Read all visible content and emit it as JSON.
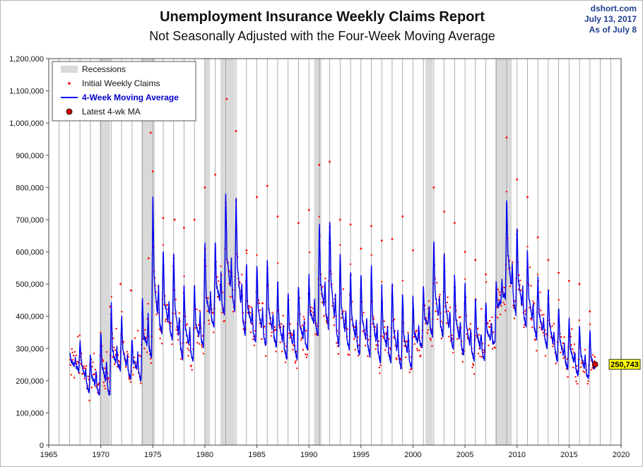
{
  "source": {
    "line1": "dshort.com",
    "line2": "July 13, 2017",
    "line3": "As of July 8"
  },
  "chart_data": {
    "type": "line",
    "title": "Unemployment Insurance Weekly Claims Report",
    "subtitle": "Not Seasonally Adjusted with the Four-Week Moving Average",
    "xlim": [
      1965,
      2020
    ],
    "ylim": [
      0,
      1200000
    ],
    "x_ticks": [
      1965,
      1970,
      1975,
      1980,
      1985,
      1990,
      1995,
      2000,
      2005,
      2010,
      2015,
      2020
    ],
    "y_ticks": [
      0,
      100000,
      200000,
      300000,
      400000,
      500000,
      600000,
      700000,
      800000,
      900000,
      1000000,
      1100000,
      1200000
    ],
    "y_tick_labels": [
      "0",
      "100,000",
      "200,000",
      "300,000",
      "400,000",
      "500,000",
      "600,000",
      "700,000",
      "800,000",
      "900,000",
      "1,000,000",
      "1,100,000",
      "1,200,000"
    ],
    "grid": "vertical-yearly",
    "legend_position": "top-left",
    "legend": {
      "recessions": "Recessions",
      "initial": "Initial Weekly Claims",
      "ma": "4-Week Moving Average",
      "latest": "Latest 4-wk MA"
    },
    "colors": {
      "recession": "#d9d9d9",
      "initial": "#ff0000",
      "ma": "#0000ee",
      "latest": "#cc0000",
      "callout": "#ffff00"
    },
    "recessions": [
      [
        1969.9,
        1970.9
      ],
      [
        1973.9,
        1975.2
      ],
      [
        1980.0,
        1980.5
      ],
      [
        1981.5,
        1982.9
      ],
      [
        1990.5,
        1991.2
      ],
      [
        2001.2,
        2001.9
      ],
      [
        2007.9,
        2009.5
      ]
    ],
    "series": [
      {
        "name": "4-Week Moving Average",
        "annual_peak": [
          [
            1967.1,
            300000
          ],
          [
            1968.1,
            330000
          ],
          [
            1969.1,
            280000
          ],
          [
            1970.1,
            370000
          ],
          [
            1971.1,
            460000
          ],
          [
            1972.1,
            400000
          ],
          [
            1973.1,
            330000
          ],
          [
            1974.1,
            480000
          ],
          [
            1975.1,
            830000
          ],
          [
            1976.1,
            590000
          ],
          [
            1977.1,
            605000
          ],
          [
            1978.1,
            500000
          ],
          [
            1979.1,
            510000
          ],
          [
            1980.1,
            655000
          ],
          [
            1981.1,
            640000
          ],
          [
            1982.1,
            825000
          ],
          [
            1983.1,
            785000
          ],
          [
            1984.1,
            550000
          ],
          [
            1985.1,
            570000
          ],
          [
            1986.1,
            590000
          ],
          [
            1987.1,
            510000
          ],
          [
            1988.1,
            480000
          ],
          [
            1989.1,
            510000
          ],
          [
            1990.1,
            540000
          ],
          [
            1991.1,
            715000
          ],
          [
            1992.1,
            715000
          ],
          [
            1993.1,
            600000
          ],
          [
            1994.1,
            540000
          ],
          [
            1995.1,
            540000
          ],
          [
            1996.1,
            570000
          ],
          [
            1997.1,
            500000
          ],
          [
            1998.1,
            520000
          ],
          [
            1999.1,
            480000
          ],
          [
            2000.1,
            470000
          ],
          [
            2001.1,
            500000
          ],
          [
            2002.1,
            660000
          ],
          [
            2003.1,
            600000
          ],
          [
            2004.1,
            530000
          ],
          [
            2005.1,
            510000
          ],
          [
            2006.1,
            460000
          ],
          [
            2007.1,
            450000
          ],
          [
            2008.1,
            520000
          ],
          [
            2009.1,
            795000
          ],
          [
            2010.1,
            680000
          ],
          [
            2011.1,
            605000
          ],
          [
            2012.1,
            520000
          ],
          [
            2013.1,
            490000
          ],
          [
            2014.1,
            420000
          ],
          [
            2015.1,
            400000
          ],
          [
            2016.1,
            375000
          ],
          [
            2017.1,
            360000
          ]
        ],
        "annual_trough": [
          [
            1967.8,
            230000
          ],
          [
            1968.8,
            160000
          ],
          [
            1969.8,
            150000
          ],
          [
            1970.8,
            140000
          ],
          [
            1971.8,
            230000
          ],
          [
            1972.8,
            200000
          ],
          [
            1973.8,
            190000
          ],
          [
            1974.8,
            250000
          ],
          [
            1975.8,
            340000
          ],
          [
            1976.8,
            320000
          ],
          [
            1977.8,
            260000
          ],
          [
            1978.8,
            250000
          ],
          [
            1979.8,
            290000
          ],
          [
            1980.8,
            360000
          ],
          [
            1981.8,
            390000
          ],
          [
            1982.8,
            410000
          ],
          [
            1983.8,
            340000
          ],
          [
            1984.8,
            310000
          ],
          [
            1985.8,
            300000
          ],
          [
            1986.8,
            300000
          ],
          [
            1987.8,
            260000
          ],
          [
            1988.8,
            260000
          ],
          [
            1989.8,
            290000
          ],
          [
            1990.8,
            330000
          ],
          [
            1991.8,
            360000
          ],
          [
            1992.8,
            300000
          ],
          [
            1993.8,
            290000
          ],
          [
            1994.8,
            270000
          ],
          [
            1995.8,
            270000
          ],
          [
            1996.8,
            250000
          ],
          [
            1997.8,
            250000
          ],
          [
            1998.8,
            230000
          ],
          [
            1999.8,
            230000
          ],
          [
            2000.8,
            300000
          ],
          [
            2001.8,
            330000
          ],
          [
            2002.8,
            330000
          ],
          [
            2003.8,
            290000
          ],
          [
            2004.8,
            270000
          ],
          [
            2005.8,
            260000
          ],
          [
            2006.8,
            260000
          ],
          [
            2007.8,
            300000
          ],
          [
            2008.8,
            450000
          ],
          [
            2009.8,
            400000
          ],
          [
            2010.8,
            360000
          ],
          [
            2011.8,
            330000
          ],
          [
            2012.8,
            300000
          ],
          [
            2013.8,
            260000
          ],
          [
            2014.8,
            230000
          ],
          [
            2015.8,
            210000
          ],
          [
            2016.8,
            200000
          ]
        ]
      },
      {
        "name": "Initial Weekly Claims",
        "outliers": [
          [
            1970.9,
            430000
          ],
          [
            1971.9,
            500000
          ],
          [
            1972.9,
            480000
          ],
          [
            1974.6,
            580000
          ],
          [
            1974.8,
            970000
          ],
          [
            1975.0,
            850000
          ],
          [
            1976.0,
            705000
          ],
          [
            1977.1,
            700000
          ],
          [
            1978.0,
            675000
          ],
          [
            1979.0,
            700000
          ],
          [
            1980.0,
            800000
          ],
          [
            1981.0,
            840000
          ],
          [
            1982.1,
            1075000
          ],
          [
            1983.0,
            975000
          ],
          [
            1984.0,
            605000
          ],
          [
            1985.0,
            770000
          ],
          [
            1986.0,
            805000
          ],
          [
            1987.0,
            710000
          ],
          [
            1989.0,
            690000
          ],
          [
            1990.0,
            730000
          ],
          [
            1991.0,
            870000
          ],
          [
            1992.0,
            880000
          ],
          [
            1993.0,
            700000
          ],
          [
            1994.0,
            685000
          ],
          [
            1995.0,
            610000
          ],
          [
            1996.0,
            680000
          ],
          [
            1997.0,
            635000
          ],
          [
            1998.0,
            640000
          ],
          [
            1999.0,
            710000
          ],
          [
            2000.0,
            605000
          ],
          [
            2002.0,
            800000
          ],
          [
            2003.0,
            725000
          ],
          [
            2004.0,
            690000
          ],
          [
            2005.0,
            600000
          ],
          [
            2006.0,
            575000
          ],
          [
            2007.0,
            530000
          ],
          [
            2009.0,
            955000
          ],
          [
            2010.0,
            825000
          ],
          [
            2011.0,
            770000
          ],
          [
            2012.0,
            645000
          ],
          [
            2013.0,
            575000
          ],
          [
            2014.0,
            535000
          ],
          [
            2015.0,
            510000
          ],
          [
            2016.0,
            500000
          ],
          [
            2017.0,
            415000
          ]
        ]
      }
    ],
    "latest": {
      "x": 2017.5,
      "y": 250743,
      "label": "250,743"
    }
  }
}
